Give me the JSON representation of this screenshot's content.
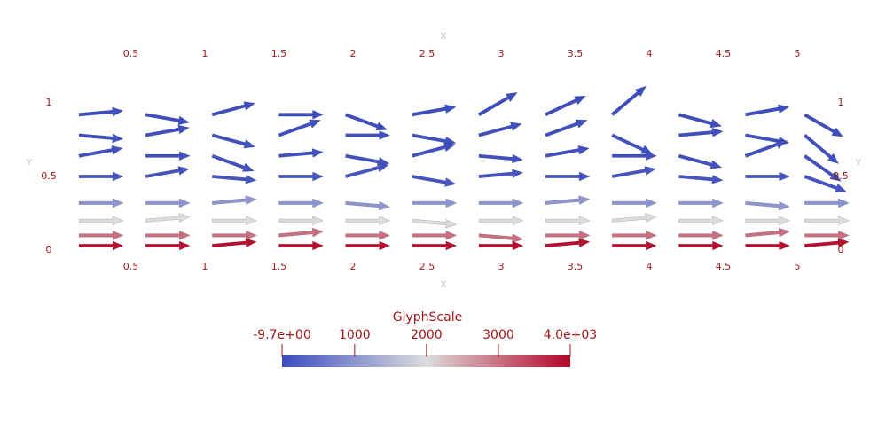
{
  "chart_data": {
    "type": "quiver",
    "x_label": "X",
    "y_label": "Y",
    "xlim": [
      0,
      5.2
    ],
    "ylim": [
      0,
      1.05
    ],
    "xticks": [
      0.5,
      1,
      1.5,
      2,
      2.5,
      3,
      3.5,
      4,
      4.5,
      5
    ],
    "yticks": [
      0,
      0.5,
      1
    ],
    "glyph_x": [
      0.15,
      0.6,
      1.05,
      1.5,
      1.95,
      2.4,
      2.85,
      3.3,
      3.75,
      4.2,
      4.65,
      5.05
    ],
    "glyph_rows": [
      {
        "y": 0.92,
        "scale": 20,
        "angles": [
          5,
          -10,
          15,
          0,
          -20,
          10,
          30,
          25,
          40,
          -15,
          10,
          -30
        ]
      },
      {
        "y": 0.78,
        "scale": 40,
        "angles": [
          -5,
          10,
          -15,
          20,
          0,
          -10,
          15,
          20,
          -25,
          5,
          -10,
          -40
        ]
      },
      {
        "y": 0.64,
        "scale": 60,
        "angles": [
          10,
          0,
          -20,
          5,
          -10,
          15,
          -5,
          10,
          0,
          -15,
          20,
          -35
        ]
      },
      {
        "y": 0.5,
        "scale": 120,
        "angles": [
          0,
          10,
          -5,
          0,
          15,
          -10,
          5,
          0,
          10,
          -5,
          0,
          -20
        ]
      },
      {
        "y": 0.32,
        "scale": 1000,
        "angles": [
          0,
          0,
          5,
          0,
          -5,
          0,
          0,
          5,
          0,
          0,
          -5,
          0
        ]
      },
      {
        "y": 0.2,
        "scale": 2000,
        "angles": [
          0,
          5,
          0,
          0,
          0,
          -5,
          0,
          0,
          5,
          0,
          0,
          0
        ]
      },
      {
        "y": 0.1,
        "scale": 3000,
        "angles": [
          0,
          0,
          0,
          5,
          0,
          0,
          -5,
          0,
          0,
          0,
          5,
          0
        ]
      },
      {
        "y": 0.03,
        "scale": 3900,
        "angles": [
          0,
          0,
          5,
          0,
          0,
          0,
          0,
          5,
          0,
          0,
          0,
          5
        ]
      }
    ],
    "colorbar": {
      "title": "GlyphScale",
      "clim": [
        -9.7,
        4000
      ],
      "ticks": [
        {
          "value": -9.7,
          "label": "-9.7e+00"
        },
        1000,
        2000,
        3000,
        {
          "value": 4000,
          "label": "4.0e+03"
        }
      ],
      "colormap": [
        "#3b4cc0",
        "#dddddd",
        "#b40426"
      ]
    }
  }
}
